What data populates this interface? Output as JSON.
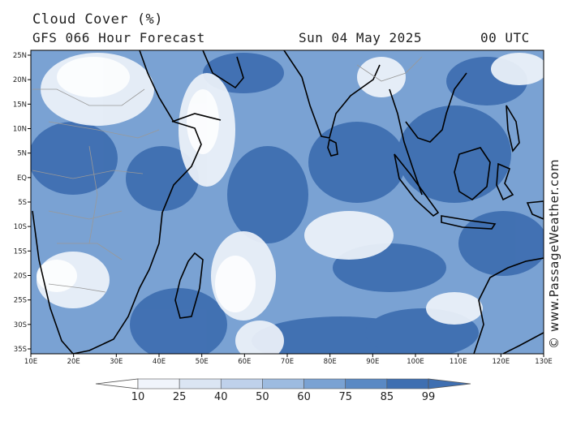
{
  "header": {
    "title": "Cloud Cover (%)",
    "model": "GFS 066 Hour Forecast",
    "date": "Sun 04 May 2025",
    "time": "00 UTC"
  },
  "watermark": "© www.PassageWeather.com",
  "axes": {
    "lon_labels": [
      "10E",
      "20E",
      "30E",
      "40E",
      "50E",
      "60E",
      "70E",
      "80E",
      "90E",
      "100E",
      "110E",
      "120E",
      "130E"
    ],
    "lat_labels": [
      "25N",
      "20N",
      "15N",
      "10N",
      "5N",
      "EQ",
      "5S",
      "10S",
      "15S",
      "20S",
      "25S",
      "30S",
      "35S"
    ]
  },
  "colorbar": {
    "labels": [
      "10",
      "25",
      "40",
      "50",
      "60",
      "75",
      "85",
      "99"
    ],
    "colors": [
      "#ffffff",
      "#f0f4fb",
      "#dbe5f3",
      "#bfd1eb",
      "#9dbbe0",
      "#7aa2d3",
      "#5a89c4",
      "#3f6fb1"
    ]
  },
  "map_colors": {
    "cloud_dark": "#3f6fb1",
    "cloud_mid": "#7aa2d3",
    "cloud_light": "#c8d8ee",
    "coast": "#000000",
    "border": "#999999"
  }
}
